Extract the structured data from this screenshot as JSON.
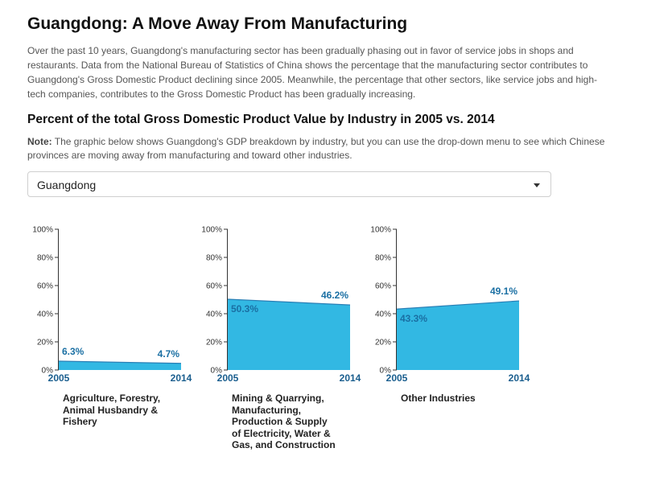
{
  "header": {
    "title": "Guangdong: A Move Away From Manufacturing",
    "intro": "Over the past 10 years, Guangdong's manufacturing sector has been gradually phasing out in favor of service jobs in shops and restaurants. Data from the National Bureau of Statistics of China shows the percentage that the manufacturing sector contributes to Guangdong's Gross Domestic Product declining since 2005. Meanwhile, the percentage that other sectors, like service jobs and high-tech companies, contributes to the Gross Domestic Product has been gradually increasing.",
    "subtitle": "Percent of the total Gross Domestic Product Value by Industry in 2005 vs. 2014",
    "note_label": "Note:",
    "note_text": " The graphic below shows Guangdong's GDP breakdown by industry, but you can use the drop-down menu to see which Chinese provinces are moving away from manufacturing and toward other industries."
  },
  "dropdown": {
    "selected": "Guangdong"
  },
  "colors": {
    "area_fill": "#32b8e3",
    "area_stroke": "#2a7fb5",
    "value_label": "#1a6fa3"
  },
  "chart_data": [
    {
      "type": "area",
      "x": [
        "2005",
        "2014"
      ],
      "values": [
        6.3,
        4.7
      ],
      "value_labels": [
        "6.3%",
        "4.7%"
      ],
      "ylim": [
        0,
        100
      ],
      "yticks": [
        "0%",
        "20%",
        "40%",
        "60%",
        "80%",
        "100%"
      ],
      "label_lines": [
        "Agriculture, Forestry,",
        "Animal Husbandry &",
        "Fishery"
      ]
    },
    {
      "type": "area",
      "x": [
        "2005",
        "2014"
      ],
      "values": [
        50.3,
        46.2
      ],
      "value_labels": [
        "50.3%",
        "46.2%"
      ],
      "ylim": [
        0,
        100
      ],
      "yticks": [
        "0%",
        "20%",
        "40%",
        "60%",
        "80%",
        "100%"
      ],
      "label_lines": [
        "Mining & Quarrying,",
        "Manufacturing,",
        "Production & Supply",
        "of Electricity, Water &",
        "Gas, and Construction"
      ]
    },
    {
      "type": "area",
      "x": [
        "2005",
        "2014"
      ],
      "values": [
        43.3,
        49.1
      ],
      "value_labels": [
        "43.3%",
        "49.1%"
      ],
      "ylim": [
        0,
        100
      ],
      "yticks": [
        "0%",
        "20%",
        "40%",
        "60%",
        "80%",
        "100%"
      ],
      "label_lines": [
        "Other Industries"
      ]
    }
  ]
}
